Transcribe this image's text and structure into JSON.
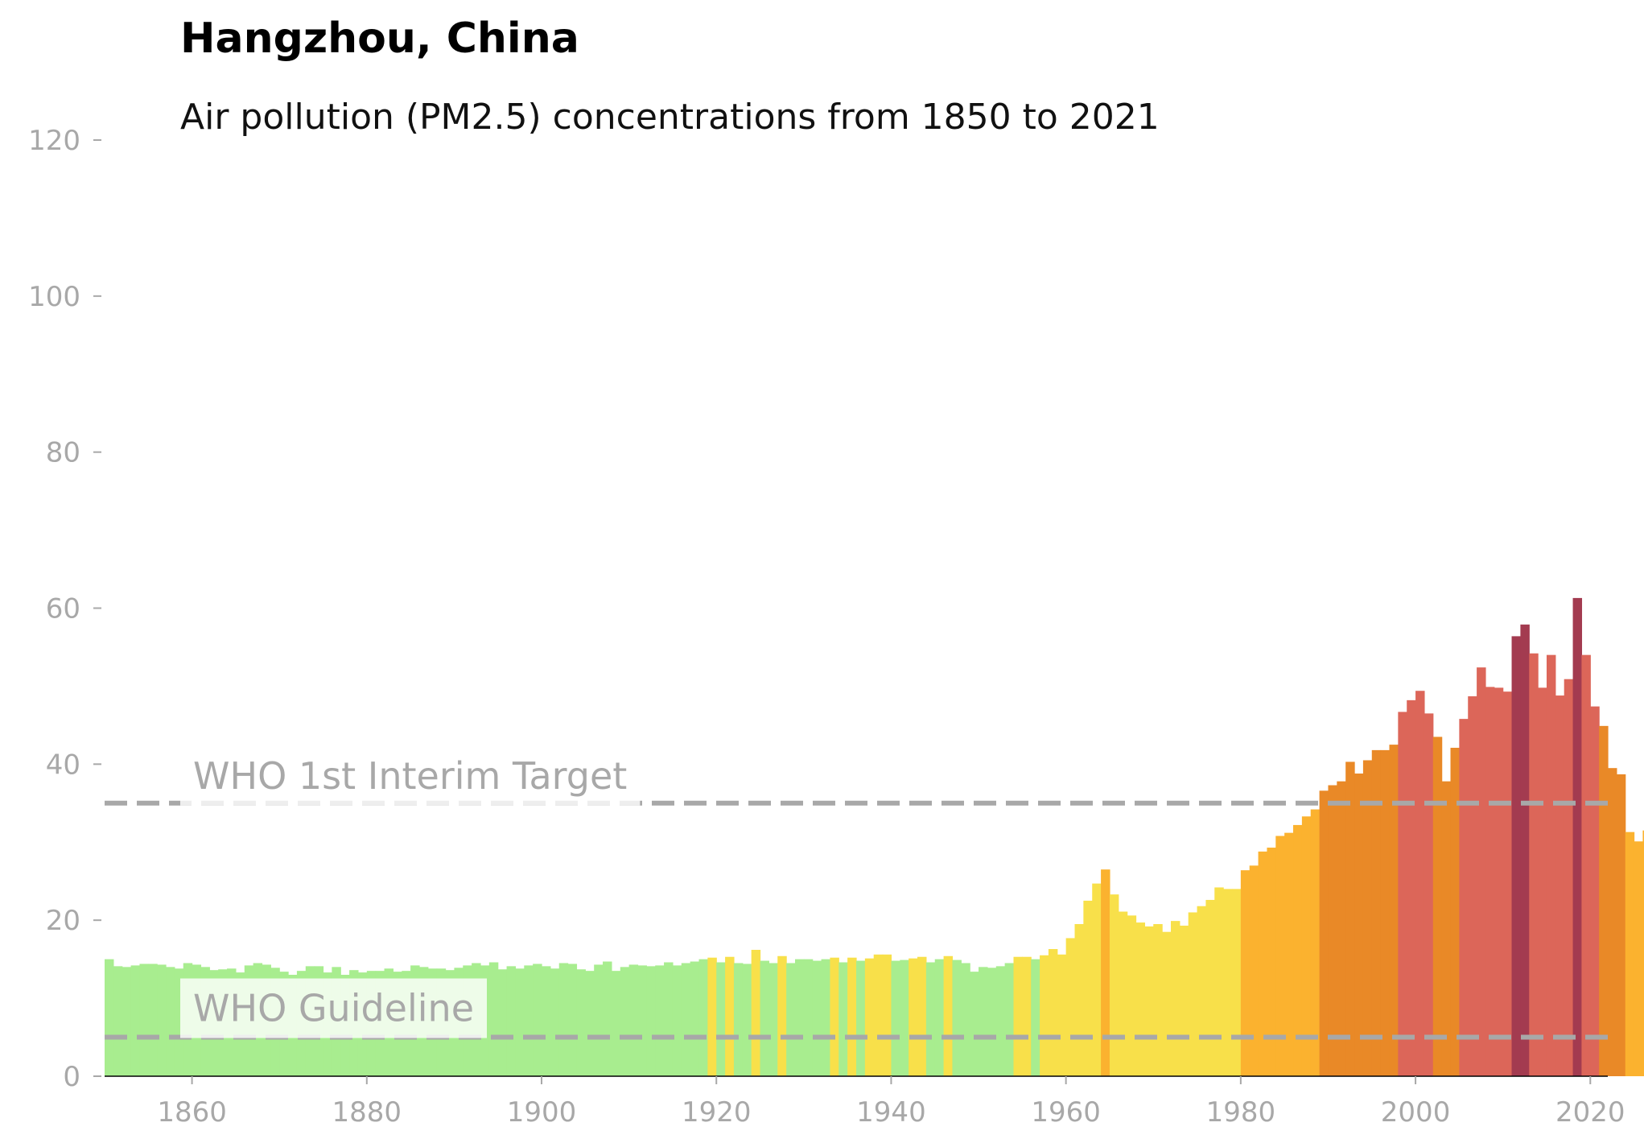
{
  "chart_data": {
    "type": "bar",
    "title": "Hangzhou, China",
    "subtitle": "Air pollution (PM2.5) concentrations from 1850 to 2021",
    "xlabel": "",
    "ylabel": "",
    "xlim": [
      1850,
      2022
    ],
    "ylim": [
      0,
      120
    ],
    "x_ticks": [
      1860,
      1880,
      1900,
      1920,
      1940,
      1960,
      1980,
      2000,
      2020
    ],
    "y_ticks": [
      0,
      20,
      40,
      60,
      80,
      100,
      120
    ],
    "grid": false,
    "legend": "none",
    "reference_lines": [
      {
        "label": "WHO 1st Interim Target",
        "value": 35
      },
      {
        "label": "WHO Guideline",
        "value": 5
      }
    ],
    "color_bands": [
      {
        "max": 15,
        "color": "#a8ed8f"
      },
      {
        "max": 25,
        "color": "#f8e04a"
      },
      {
        "max": 35,
        "color": "#fbb22f"
      },
      {
        "max": 45,
        "color": "#e98927"
      },
      {
        "max": 55,
        "color": "#dc6659"
      },
      {
        "max": 999,
        "color": "#a33b50"
      }
    ],
    "x_start": 1850,
    "values": [
      15.0,
      14.1,
      14.0,
      14.2,
      14.4,
      14.4,
      14.3,
      14.0,
      13.8,
      14.5,
      14.3,
      14.0,
      13.6,
      13.7,
      13.8,
      13.3,
      14.2,
      14.5,
      14.3,
      13.9,
      13.4,
      13.0,
      13.5,
      14.1,
      14.1,
      13.3,
      14.0,
      13.0,
      13.6,
      13.3,
      13.5,
      13.5,
      13.8,
      13.4,
      13.5,
      14.2,
      14.0,
      13.8,
      13.8,
      13.6,
      13.9,
      14.2,
      14.5,
      14.2,
      14.6,
      13.7,
      14.1,
      13.8,
      14.2,
      14.4,
      14.1,
      13.8,
      14.5,
      14.4,
      13.7,
      13.5,
      14.3,
      14.7,
      13.5,
      14.0,
      14.3,
      14.2,
      14.1,
      14.2,
      14.6,
      14.2,
      14.5,
      14.7,
      15.0,
      15.2,
      14.6,
      15.3,
      14.5,
      14.4,
      16.2,
      14.8,
      14.5,
      15.4,
      14.5,
      15.0,
      15.0,
      14.8,
      15.0,
      15.2,
      14.6,
      15.2,
      14.8,
      15.1,
      15.6,
      15.6,
      14.8,
      14.9,
      15.1,
      15.3,
      14.6,
      15.0,
      15.4,
      14.9,
      14.5,
      13.4,
      14.0,
      13.9,
      14.1,
      14.5,
      15.3,
      15.3,
      15.0,
      15.5,
      16.3,
      15.6,
      17.7,
      19.5,
      22.5,
      24.7,
      26.5,
      23.3,
      21.1,
      20.6,
      19.7,
      19.2,
      19.5,
      18.5,
      19.9,
      19.3,
      21.0,
      21.8,
      22.6,
      24.2,
      24.0,
      24.0,
      26.4,
      27.0,
      28.8,
      29.3,
      30.8,
      31.2,
      32.2,
      33.3,
      34.2,
      36.6,
      37.3,
      37.8,
      40.3,
      38.8,
      40.5,
      41.8,
      41.8,
      42.5,
      46.7,
      48.2,
      49.4,
      46.5,
      43.5,
      37.8,
      42.1,
      45.8,
      48.7,
      52.4,
      49.9,
      49.8,
      49.3,
      56.4,
      57.9,
      54.2,
      49.8,
      54.0,
      48.8,
      50.9,
      61.3,
      54.0,
      47.4,
      44.9,
      39.5,
      38.7,
      31.3,
      30.1,
      31.5
    ]
  }
}
